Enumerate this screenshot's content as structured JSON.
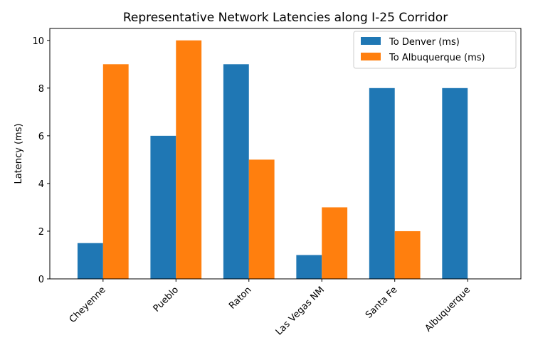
{
  "chart_data": {
    "type": "bar",
    "title": "Representative Network Latencies along I-25 Corridor",
    "xlabel": "",
    "ylabel": "Latency (ms)",
    "categories": [
      "Cheyenne",
      "Pueblo",
      "Raton",
      "Las Vegas NM",
      "Santa Fe",
      "Albuquerque"
    ],
    "series": [
      {
        "name": "To Denver (ms)",
        "color": "#1f77b4",
        "values": [
          1.5,
          6,
          9,
          1,
          8,
          8
        ]
      },
      {
        "name": "To Albuquerque (ms)",
        "color": "#ff7f0e",
        "values": [
          9,
          10,
          5,
          3,
          2,
          0
        ]
      }
    ],
    "ylim": [
      0,
      10.5
    ],
    "yticks": [
      0,
      2,
      4,
      6,
      8,
      10
    ],
    "grid": false,
    "legend_position": "top-right"
  }
}
